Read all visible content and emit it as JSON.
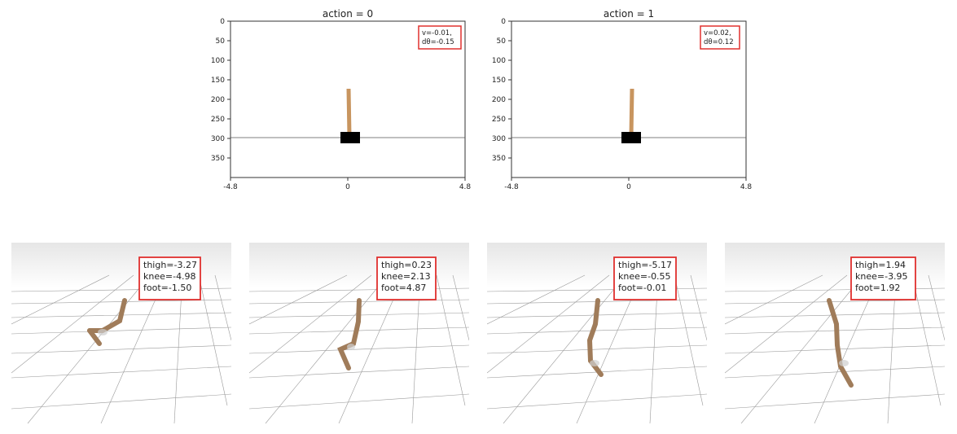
{
  "plots": [
    {
      "title": "action = 0",
      "x_ticks": [
        "-4.8",
        "0",
        "4.8"
      ],
      "y_ticks": [
        "0",
        "50",
        "100",
        "150",
        "200",
        "250",
        "300",
        "350"
      ],
      "annotation": [
        "v=-0.01,",
        "dθ=-0.15"
      ]
    },
    {
      "title": "action = 1",
      "x_ticks": [
        "-4.8",
        "0",
        "4.8"
      ],
      "y_ticks": [
        "0",
        "50",
        "100",
        "150",
        "200",
        "250",
        "300",
        "350"
      ],
      "annotation": [
        "v=0.02,",
        "dθ=0.12"
      ]
    }
  ],
  "hopper_panels": [
    {
      "lines": [
        "thigh=-3.27",
        "knee=-4.98",
        "foot=-1.50"
      ]
    },
    {
      "lines": [
        "thigh=0.23",
        "knee=2.13",
        "foot=4.87"
      ]
    },
    {
      "lines": [
        "thigh=-5.17",
        "knee=-0.55",
        "foot=-0.01"
      ]
    },
    {
      "lines": [
        "thigh=1.94",
        "knee=-3.95",
        "foot=1.92"
      ]
    }
  ],
  "colors": {
    "annotation_border": "#e0302e",
    "pole": "#c8955f",
    "cart": "#000000",
    "leg": "#a07c5a",
    "grid": "#9a9a9a"
  }
}
